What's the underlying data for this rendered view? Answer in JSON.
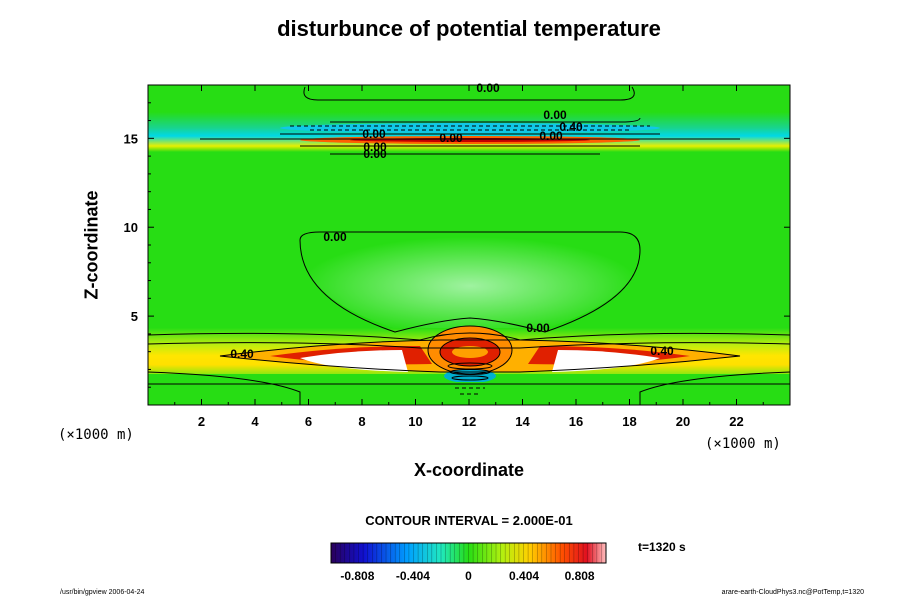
{
  "chart_data": {
    "type": "heatmap",
    "title": "disturbunce of potential temperature",
    "xlabel": "X-coordinate",
    "ylabel": "Z-coordinate",
    "x_unit_label": "(×1000 m)",
    "y_unit_label": "(×1000 m)",
    "xlim": [
      0,
      24
    ],
    "ylim": [
      0,
      18
    ],
    "x_ticks": [
      "2",
      "4",
      "6",
      "8",
      "10",
      "12",
      "14",
      "16",
      "18",
      "20",
      "22"
    ],
    "y_ticks": [
      "5",
      "10",
      "15"
    ],
    "contour_labels": [
      "0.00",
      "0.00",
      "0.40",
      "0.00",
      "0.00",
      "0.00",
      "0.00",
      "0.00",
      "0.00",
      "0.00",
      "0.40",
      "0.40"
    ],
    "contour_interval": "CONTOUR INTERVAL = 2.000E-01",
    "colorbar": {
      "range": [
        -1.0,
        1.0
      ],
      "tick_labels": [
        "-0.808",
        "-0.404",
        "0",
        "0.404",
        "0.808"
      ]
    },
    "time_label": "t=1320 s",
    "footer_left": "/usr/bin/gpview 2006-04-24",
    "footer_right": "arare-earth-CloudPhys3.nc@PotTemp,t=1320"
  },
  "colors": {
    "field_background": "#27dd14",
    "warm_band": "#ffee00",
    "hot": "#e83000",
    "core": "#ffffff",
    "cold": "#00e0d0"
  }
}
